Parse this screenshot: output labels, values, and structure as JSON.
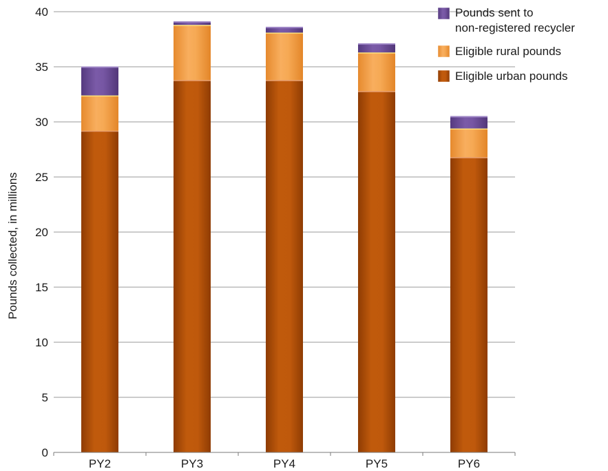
{
  "chart_data": {
    "type": "bar",
    "stacked": true,
    "categories": [
      "PY2",
      "PY3",
      "PY4",
      "PY5",
      "PY6"
    ],
    "series": [
      {
        "name": "Eligible urban pounds",
        "values": [
          29.2,
          33.8,
          33.8,
          32.8,
          26.8
        ],
        "color": "#b34f08"
      },
      {
        "name": "Eligible rural pounds",
        "values": [
          3.2,
          5.0,
          4.3,
          3.5,
          2.6
        ],
        "color": "#f3a04a"
      },
      {
        "name": "Pounds sent to non-registered recycler",
        "values": [
          2.6,
          0.3,
          0.5,
          0.8,
          1.1
        ],
        "color": "#6e4f99"
      }
    ],
    "ylabel": "Pounds collected, in millions",
    "xlabel": "",
    "ylim": [
      0,
      40
    ],
    "yticks": [
      0,
      5,
      10,
      15,
      20,
      25,
      30,
      35,
      40
    ],
    "grid": true,
    "legend": {
      "position": "top-right",
      "entries": [
        {
          "lines": [
            "Pounds sent to",
            "non-registered recycler"
          ],
          "color": "#6e4f99"
        },
        {
          "lines": [
            "Eligible rural pounds"
          ],
          "color": "#f3a04a"
        },
        {
          "lines": [
            "Eligible urban pounds"
          ],
          "color": "#b34f08"
        }
      ]
    }
  }
}
